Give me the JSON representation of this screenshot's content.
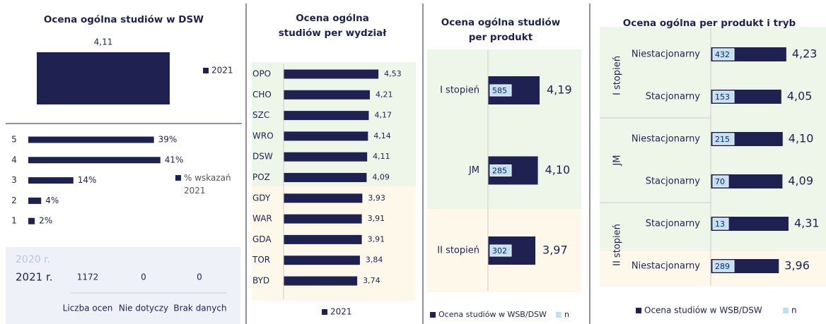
{
  "chart_data": [
    {
      "type": "column",
      "title": "Ocena ogólna studiów w DSW",
      "categories": [
        null
      ],
      "series": [
        {
          "name": "2021",
          "color": "#1f2150",
          "values": [
            4.11
          ],
          "value_labels": [
            "4,11"
          ]
        }
      ],
      "ylim": [
        0,
        5
      ]
    },
    {
      "type": "barh",
      "categories": [
        "5",
        "4",
        "3",
        "2",
        "1"
      ],
      "series": [
        {
          "name": "% wskazań 2021",
          "color": "#1f2150",
          "values": [
            39,
            41,
            14,
            4,
            2
          ],
          "value_labels": [
            "39%",
            "41%",
            "14%",
            "4%",
            "2%"
          ]
        }
      ],
      "xlim": [
        0,
        45
      ]
    },
    {
      "type": "barh",
      "title": [
        "Ocena ogólna",
        "studiów per wydział"
      ],
      "categories": [
        "OPO",
        "CHO",
        "SZC",
        "WRO",
        "DSW",
        "POZ",
        "GDY",
        "WAR",
        "GDA",
        "TOR",
        "BYD"
      ],
      "series": [
        {
          "name": "2021",
          "color": "#1f2150",
          "values": [
            4.53,
            4.21,
            4.17,
            4.14,
            4.11,
            4.09,
            3.93,
            3.91,
            3.91,
            3.84,
            3.74
          ],
          "value_labels": [
            "4,53",
            "4,21",
            "4,17",
            "4,14",
            "4,11",
            "4,09",
            "3,93",
            "3,91",
            "3,91",
            "3,84",
            "3,74"
          ]
        }
      ],
      "xlim": [
        1,
        5
      ]
    },
    {
      "type": "barh",
      "title": [
        "Ocena ogólna studiów",
        "per produkt"
      ],
      "categories": [
        "I stopień",
        "JM",
        "II stopień"
      ],
      "series": [
        {
          "name": "Ocena studiów w WSB/DSW",
          "color": "#1f2150",
          "values": [
            4.19,
            4.1,
            3.97
          ],
          "value_labels": [
            "4,19",
            "4,10",
            "3,97"
          ]
        },
        {
          "name": "n",
          "color": "#bfe0f5",
          "values": [
            585,
            285,
            302
          ]
        }
      ],
      "xlim": [
        1.5,
        5
      ]
    },
    {
      "type": "barh",
      "title": "Ocena ogólna per produkt i tryb",
      "group_labels": [
        "I stopień",
        "JM",
        "II stopień"
      ],
      "categories": [
        "Niestacjonarny",
        "Stacjonarny",
        "Niestacjonarny",
        "Stacjonarny",
        "Stacjonarny",
        "Niestacjonarny"
      ],
      "series": [
        {
          "name": "Ocena studiów w WSB/DSW",
          "color": "#1f2150",
          "values": [
            4.23,
            4.05,
            4.1,
            4.09,
            4.31,
            3.96
          ],
          "value_labels": [
            "4,23",
            "4,05",
            "4,10",
            "4,09",
            "4,31",
            "3,96"
          ]
        },
        {
          "name": "n",
          "color": "#bfe0f5",
          "values": [
            432,
            153,
            215,
            70,
            13,
            289
          ]
        }
      ],
      "xlim": [
        1.5,
        5
      ]
    }
  ],
  "table": {
    "rows": [
      [
        "2020 r."
      ],
      [
        "2021 r.",
        1172,
        0,
        0
      ]
    ],
    "columns": [
      "Liczba ocen",
      "Nie dotyczy",
      "Brak danych"
    ]
  }
}
